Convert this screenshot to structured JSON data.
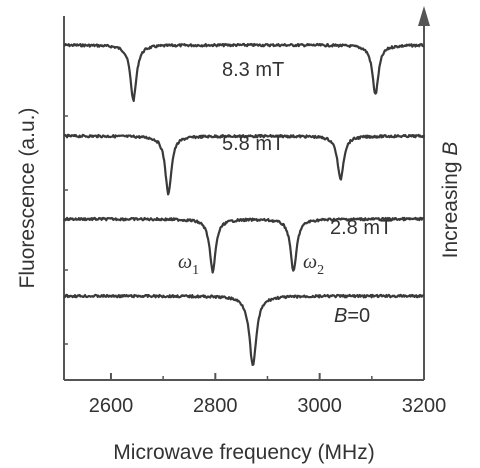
{
  "chart_data": {
    "type": "line",
    "xlabel": "Microwave frequency (MHz)",
    "ylabel": "Fluorescence (a.u.)",
    "xlim": [
      2510,
      3200
    ],
    "xticks": [
      "2600",
      "2800",
      "3000",
      "3200"
    ],
    "y_ticks_labeled": false,
    "grid": false,
    "side_arrow": {
      "label_prefix": "Increasing ",
      "label_var": "B"
    },
    "annotations": {
      "omega1": "ω",
      "omega1_sub": "1",
      "omega2": "ω",
      "omega2_sub": "2"
    },
    "series": [
      {
        "name_var": "",
        "name_rest": "8.3 mT",
        "baseline": 4,
        "dips": [
          {
            "x": 2643,
            "depth": 0.95,
            "width": 7
          },
          {
            "x": 3107,
            "depth": 0.85,
            "width": 7
          }
        ]
      },
      {
        "name_var": "",
        "name_rest": "5.8 mT",
        "baseline": 3,
        "dips": [
          {
            "x": 2710,
            "depth": 1.0,
            "width": 7
          },
          {
            "x": 3040,
            "depth": 0.75,
            "width": 7
          }
        ]
      },
      {
        "name_var": "",
        "name_rest": "2.8 mT",
        "baseline": 2,
        "dips": [
          {
            "x": 2795,
            "depth": 0.9,
            "width": 7
          },
          {
            "x": 2950,
            "depth": 0.9,
            "width": 7
          }
        ]
      },
      {
        "name_var": "B",
        "name_rest": "=0",
        "baseline": 1,
        "dips": [
          {
            "x": 2872,
            "depth": 1.2,
            "width": 8
          }
        ]
      }
    ]
  }
}
